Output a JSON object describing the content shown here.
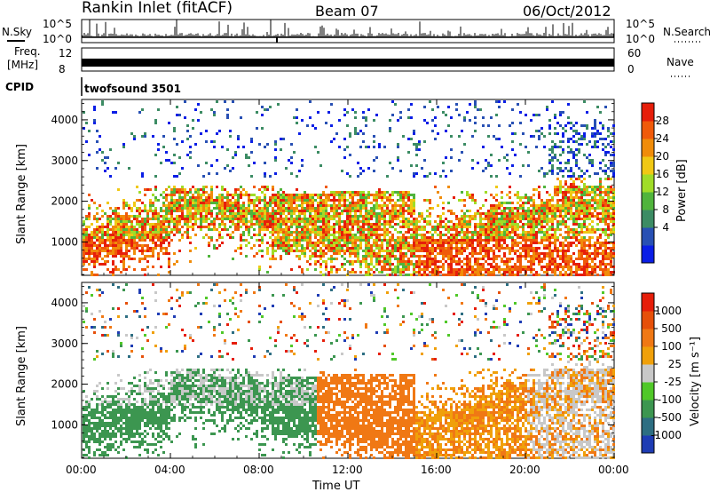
{
  "header": {
    "site": "Rankin Inlet (fitACF)",
    "beam": "Beam 07",
    "date": "06/Oct/2012"
  },
  "status": {
    "nsky_label": "N.Sky",
    "nsearch_label": "N.Search",
    "freq_label_line1": "Freq.",
    "freq_label_line2": "[MHz]",
    "nave_label": "Nave",
    "cpid_label": "CPID",
    "cpid_value": "twofsound 3501",
    "nsky_ticks": [
      "10^5",
      "10^0"
    ],
    "nsearch_ticks": [
      "10^5",
      "10^0"
    ],
    "freq_ticks": [
      "12",
      "8"
    ],
    "nave_ticks": [
      "60",
      "0"
    ]
  },
  "chart_data": [
    {
      "type": "heatmap",
      "name": "power",
      "ylabel": "Slant Range [km]",
      "ylim": [
        180,
        4500
      ],
      "yticks": [
        "4000",
        "3000",
        "2000",
        "1000"
      ],
      "colorbar_label": "Power [dB]",
      "colorbar_ticks": [
        "28",
        "24",
        "20",
        "16",
        "12",
        "8",
        "4"
      ],
      "colorbar_colors": [
        "#0a1ee6",
        "#2850b4",
        "#3c8c64",
        "#50b43c",
        "#a0dc28",
        "#f0c814",
        "#f08c0a",
        "#f05a0a",
        "#e61e0a"
      ]
    },
    {
      "type": "heatmap",
      "name": "velocity",
      "ylabel": "Slant Range [km]",
      "ylim": [
        180,
        4500
      ],
      "yticks": [
        "4000",
        "3000",
        "2000",
        "1000"
      ],
      "colorbar_label": "Velocity [m s⁻¹]",
      "colorbar_ticks": [
        "1000",
        "500",
        "100",
        "25",
        "-25",
        "-100",
        "-500",
        "-1000"
      ],
      "colorbar_colors": [
        "#1e3cb4",
        "#2d6e82",
        "#3c9650",
        "#50c828",
        "#c8c8c8",
        "#f0a00a",
        "#f07814",
        "#e6500a",
        "#e61e0a"
      ]
    }
  ],
  "x_axis": {
    "label": "Time UT",
    "ticks": [
      "00:00",
      "04:00",
      "08:00",
      "12:00",
      "16:00",
      "20:00",
      "00:00"
    ]
  }
}
